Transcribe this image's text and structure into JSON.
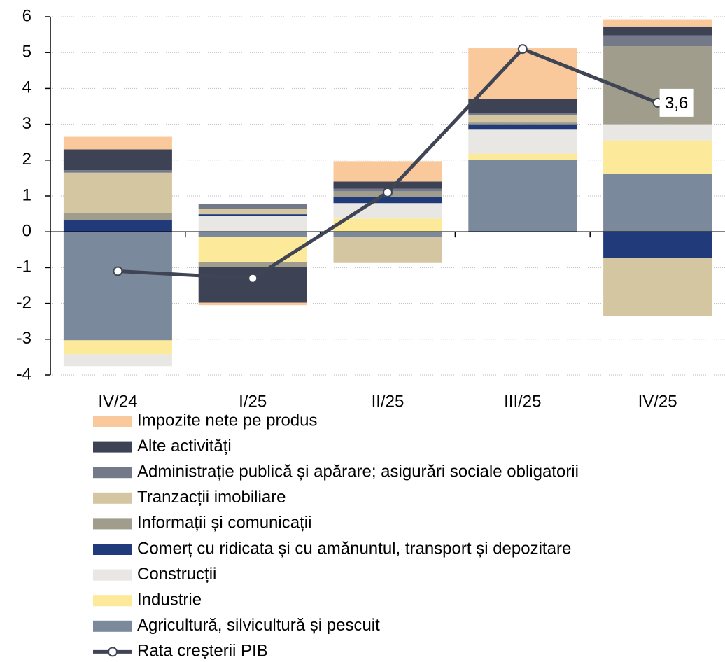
{
  "chart_data": {
    "type": "stacked-bar-line",
    "categories": [
      "IV/24",
      "I/25",
      "II/25",
      "III/25",
      "IV/25"
    ],
    "ylim": [
      -4,
      6
    ],
    "yticks": [
      -4,
      -3,
      -2,
      -1,
      0,
      1,
      2,
      3,
      4,
      5,
      6
    ],
    "grid": true,
    "series": [
      {
        "name": "Impozite nete pe produs",
        "color": "#f9c89b",
        "values": [
          0.35,
          -0.07,
          0.57,
          1.42,
          0.2
        ]
      },
      {
        "name": "Alte activități",
        "color": "#3d4254",
        "values": [
          0.58,
          -1.0,
          0.2,
          0.38,
          0.25
        ]
      },
      {
        "name": "Administrație publică și apărare; asigurări sociale obligatorii",
        "color": "#737988",
        "values": [
          0.07,
          0.14,
          0.07,
          0.07,
          0.3
        ]
      },
      {
        "name": "Tranzacții imobiliare",
        "color": "#d3c6a0",
        "values": [
          1.12,
          0.15,
          -0.72,
          0.2,
          -1.62
        ]
      },
      {
        "name": "Informații și comunicații",
        "color": "#a09d8d",
        "values": [
          0.2,
          -0.13,
          0.15,
          0.05,
          2.18
        ]
      },
      {
        "name": "Comerț cu ridicata și cu amănuntul, transport și depozitare",
        "color": "#213a7a",
        "values": [
          0.33,
          0.04,
          0.18,
          0.15,
          -0.72
        ]
      },
      {
        "name": "Construcții",
        "color": "#e8e7e3",
        "values": [
          -0.33,
          0.45,
          0.43,
          0.67,
          0.45
        ]
      },
      {
        "name": "Industrie",
        "color": "#fde99a",
        "values": [
          -0.39,
          -0.7,
          0.37,
          0.18,
          0.93
        ]
      },
      {
        "name": "Agricultură, silvicultură și pescuit",
        "color": "#7b899c",
        "values": [
          -3.03,
          -0.15,
          -0.15,
          2.0,
          1.62
        ]
      }
    ],
    "line_series": {
      "name": "Rata creșterii PIB",
      "color": "#3f4555",
      "values": [
        -1.1,
        -1.3,
        1.1,
        5.1,
        3.6
      ],
      "value_labels": [
        null,
        null,
        null,
        null,
        "3,6"
      ]
    }
  }
}
